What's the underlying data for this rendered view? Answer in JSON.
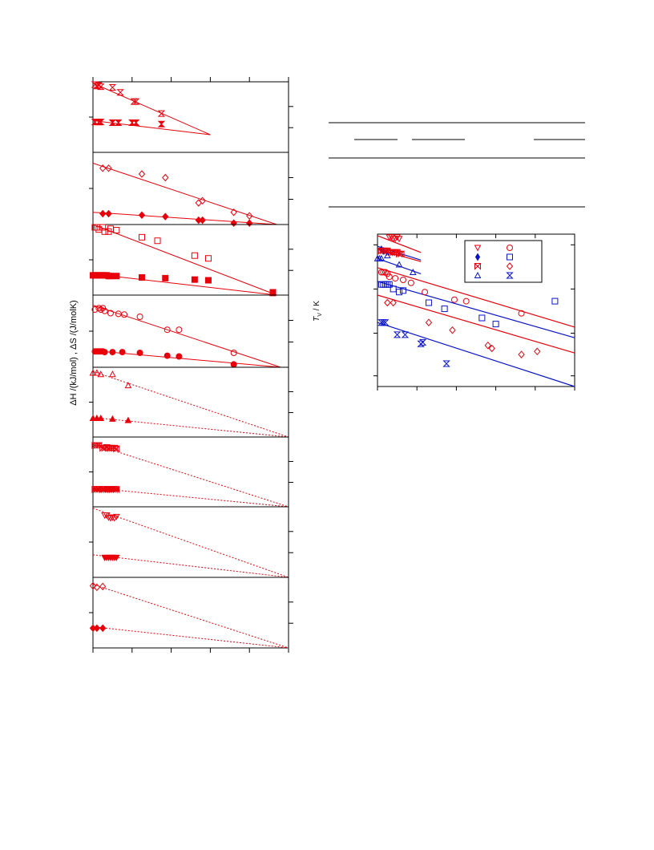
{
  "left_figure": {
    "ylabel": "ΔH /(kJ/mol) , ΔS /(J/molK)"
  },
  "right_figure": {
    "ylabel_main": "T",
    "ylabel_sub": "V",
    "ylabel_unit": " / K"
  },
  "colors": {
    "red": "#e8000b",
    "blue": "#0a14c8",
    "axis": "#000000"
  },
  "chart_data": [
    {
      "type": "scatter",
      "title": "",
      "xlabel": "",
      "ylabel": "ΔH /(kJ/mol) , ΔS /(J/molK)",
      "panel": 1,
      "fit_line": "solid",
      "symbol": "hourglass",
      "xlim": [
        0,
        1
      ],
      "ylim": [
        0,
        1
      ],
      "series": [
        {
          "marker": "open",
          "x": [
            0.01,
            0.02,
            0.03,
            0.04,
            0.1,
            0.14,
            0.21,
            0.22,
            0.35
          ],
          "y": [
            0.96,
            0.94,
            0.95,
            0.93,
            0.92,
            0.85,
            0.72,
            0.72,
            0.55
          ]
        },
        {
          "marker": "filled",
          "x": [
            0.01,
            0.03,
            0.04,
            0.1,
            0.13,
            0.2,
            0.22,
            0.35
          ],
          "y": [
            0.43,
            0.43,
            0.43,
            0.42,
            0.42,
            0.42,
            0.42,
            0.4
          ]
        }
      ],
      "fit": [
        {
          "x0": 0,
          "y0": 0.98,
          "x1": 0.6,
          "y1": 0.25
        },
        {
          "x0": 0,
          "y0": 0.45,
          "x1": 0.6,
          "y1": 0.25
        }
      ]
    },
    {
      "type": "scatter",
      "panel": 2,
      "fit_line": "solid",
      "symbol": "diamond",
      "xlim": [
        0,
        1
      ],
      "ylim": [
        0,
        1
      ],
      "series": [
        {
          "marker": "open",
          "x": [
            0.05,
            0.08,
            0.25,
            0.37,
            0.54,
            0.56,
            0.72,
            0.8
          ],
          "y": [
            0.78,
            0.78,
            0.7,
            0.65,
            0.3,
            0.33,
            0.17,
            0.12
          ]
        },
        {
          "marker": "filled",
          "x": [
            0.05,
            0.08,
            0.25,
            0.37,
            0.54,
            0.56,
            0.72,
            0.8
          ],
          "y": [
            0.15,
            0.15,
            0.13,
            0.11,
            0.06,
            0.06,
            0.02,
            0.02
          ]
        }
      ],
      "fit": [
        {
          "x0": 0,
          "y0": 0.85,
          "x1": 0.94,
          "y1": 0.0
        },
        {
          "x0": 0,
          "y0": 0.17,
          "x1": 0.94,
          "y1": 0.0
        }
      ]
    },
    {
      "type": "scatter",
      "panel": 3,
      "fit_line": "solid",
      "symbol": "square",
      "xlim": [
        0,
        1
      ],
      "ylim": [
        0,
        1
      ],
      "series": [
        {
          "marker": "open",
          "x": [
            0.01,
            0.02,
            0.03,
            0.05,
            0.06,
            0.08,
            0.09,
            0.12,
            0.25,
            0.33,
            0.52,
            0.59,
            0.92
          ],
          "y": [
            0.96,
            0.96,
            0.93,
            0.96,
            0.9,
            0.9,
            0.94,
            0.92,
            0.82,
            0.77,
            0.56,
            0.52,
            0.04
          ]
        },
        {
          "marker": "filled",
          "x": [
            0.0,
            0.01,
            0.02,
            0.03,
            0.04,
            0.05,
            0.06,
            0.07,
            0.08,
            0.09,
            0.12,
            0.25,
            0.37,
            0.52,
            0.59,
            0.92
          ],
          "y": [
            0.28,
            0.28,
            0.28,
            0.28,
            0.28,
            0.28,
            0.28,
            0.28,
            0.27,
            0.27,
            0.27,
            0.25,
            0.24,
            0.22,
            0.21,
            0.03
          ]
        }
      ],
      "fit": [
        {
          "x0": 0,
          "y0": 1.0,
          "x1": 0.94,
          "y1": 0.0
        },
        {
          "x0": 0,
          "y0": 0.3,
          "x1": 0.94,
          "y1": 0.0
        }
      ]
    },
    {
      "type": "scatter",
      "panel": 4,
      "fit_line": "solid",
      "symbol": "circle",
      "xlim": [
        0,
        1
      ],
      "ylim": [
        0,
        1
      ],
      "series": [
        {
          "marker": "open",
          "x": [
            0.01,
            0.03,
            0.04,
            0.05,
            0.06,
            0.09,
            0.13,
            0.16,
            0.24,
            0.38,
            0.44,
            0.72
          ],
          "y": [
            0.8,
            0.82,
            0.8,
            0.82,
            0.78,
            0.75,
            0.74,
            0.73,
            0.7,
            0.52,
            0.52,
            0.2
          ]
        },
        {
          "marker": "filled",
          "x": [
            0.01,
            0.02,
            0.03,
            0.04,
            0.05,
            0.06,
            0.1,
            0.15,
            0.24,
            0.38,
            0.44,
            0.72
          ],
          "y": [
            0.22,
            0.22,
            0.22,
            0.22,
            0.22,
            0.21,
            0.21,
            0.21,
            0.2,
            0.16,
            0.15,
            0.04
          ]
        }
      ],
      "fit": [
        {
          "x0": 0,
          "y0": 0.86,
          "x1": 0.96,
          "y1": 0.0
        },
        {
          "x0": 0,
          "y0": 0.23,
          "x1": 0.96,
          "y1": 0.0
        }
      ]
    },
    {
      "type": "scatter",
      "panel": 5,
      "fit_line": "dotted",
      "symbol": "triangle-up",
      "xlim": [
        0,
        1
      ],
      "ylim": [
        0,
        1
      ],
      "series": [
        {
          "marker": "open",
          "x": [
            0.0,
            0.02,
            0.04,
            0.1,
            0.18
          ],
          "y": [
            0.92,
            0.92,
            0.9,
            0.9,
            0.74
          ]
        },
        {
          "marker": "filled",
          "x": [
            0.0,
            0.02,
            0.04,
            0.1,
            0.18
          ],
          "y": [
            0.27,
            0.27,
            0.27,
            0.26,
            0.24
          ]
        }
      ],
      "fit": [
        {
          "x0": 0,
          "y0": 0.94,
          "x1": 1.0,
          "y1": 0.0
        },
        {
          "x0": 0,
          "y0": 0.28,
          "x1": 1.0,
          "y1": 0.0
        }
      ]
    },
    {
      "type": "scatter",
      "panel": 6,
      "fit_line": "dotted",
      "symbol": "bowtie",
      "xlim": [
        0,
        1
      ],
      "ylim": [
        0,
        1
      ],
      "series": [
        {
          "marker": "open",
          "x": [
            0.01,
            0.02,
            0.03,
            0.05,
            0.06,
            0.07,
            0.08,
            0.09,
            0.1,
            0.11,
            0.12
          ],
          "y": [
            0.88,
            0.88,
            0.88,
            0.84,
            0.84,
            0.85,
            0.84,
            0.84,
            0.84,
            0.84,
            0.83
          ]
        },
        {
          "marker": "filled",
          "x": [
            0.01,
            0.02,
            0.03,
            0.05,
            0.06,
            0.07,
            0.08,
            0.09,
            0.1,
            0.11,
            0.12
          ],
          "y": [
            0.25,
            0.25,
            0.25,
            0.25,
            0.25,
            0.25,
            0.25,
            0.25,
            0.25,
            0.25,
            0.25
          ]
        }
      ],
      "fit": [
        {
          "x0": 0,
          "y0": 0.9,
          "x1": 1.0,
          "y1": 0.0
        },
        {
          "x0": 0,
          "y0": 0.27,
          "x1": 1.0,
          "y1": 0.0
        }
      ]
    },
    {
      "type": "scatter",
      "panel": 7,
      "fit_line": "dotted",
      "symbol": "triangle-down",
      "xlim": [
        0,
        1
      ],
      "ylim": [
        0,
        1
      ],
      "series": [
        {
          "marker": "open",
          "x": [
            0.06,
            0.07,
            0.08,
            0.09,
            0.1,
            0.11,
            0.12
          ],
          "y": [
            0.88,
            0.88,
            0.85,
            0.84,
            0.85,
            0.84,
            0.86
          ]
        },
        {
          "marker": "filled",
          "x": [
            0.06,
            0.07,
            0.08,
            0.09,
            0.1,
            0.11,
            0.12
          ],
          "y": [
            0.28,
            0.28,
            0.28,
            0.28,
            0.28,
            0.28,
            0.28
          ]
        }
      ],
      "fit": [
        {
          "x0": 0,
          "y0": 0.98,
          "x1": 1.0,
          "y1": 0.0
        },
        {
          "x0": 0,
          "y0": 0.32,
          "x1": 1.0,
          "y1": 0.0
        }
      ]
    },
    {
      "type": "scatter",
      "panel": 8,
      "fit_line": "dotted",
      "symbol": "diamond",
      "xlim": [
        0,
        1
      ],
      "ylim": [
        0,
        1
      ],
      "series": [
        {
          "marker": "open",
          "x": [
            0.0,
            0.02,
            0.05
          ],
          "y": [
            0.88,
            0.86,
            0.87
          ]
        },
        {
          "marker": "filled",
          "x": [
            0.0,
            0.02,
            0.05
          ],
          "y": [
            0.28,
            0.28,
            0.28
          ]
        }
      ],
      "fit": [
        {
          "x0": 0,
          "y0": 0.9,
          "x1": 1.0,
          "y1": 0.0
        },
        {
          "x0": 0,
          "y0": 0.3,
          "x1": 1.0,
          "y1": 0.0
        }
      ]
    },
    {
      "type": "scatter",
      "title": "",
      "xlabel": "",
      "ylabel": "T_V / K",
      "xlim": [
        0,
        1
      ],
      "ylim": [
        0,
        1
      ],
      "legend": "top-right",
      "legend_entries": [
        {
          "symbol": "triangle-down",
          "color": "red"
        },
        {
          "symbol": "circle",
          "color": "red"
        },
        {
          "symbol": "diamond-filled",
          "color": "blue"
        },
        {
          "symbol": "square",
          "color": "blue"
        },
        {
          "symbol": "bowtie",
          "color": "red"
        },
        {
          "symbol": "diamond",
          "color": "red"
        },
        {
          "symbol": "triangle-up",
          "color": "blue"
        },
        {
          "symbol": "hourglass",
          "color": "blue"
        }
      ],
      "series": [
        {
          "symbol": "triangle-down",
          "color": "red",
          "x": [
            0.06,
            0.07,
            0.08,
            0.09,
            0.1,
            0.11
          ],
          "y": [
            0.98,
            0.98,
            0.97,
            0.97,
            0.98,
            0.97
          ]
        },
        {
          "symbol": "diamond-filled",
          "color": "blue",
          "x": [
            0.02,
            0.03
          ],
          "y": [
            0.9,
            0.89
          ]
        },
        {
          "symbol": "bowtie",
          "color": "red",
          "x": [
            0.02,
            0.03,
            0.04,
            0.05,
            0.06,
            0.07,
            0.08,
            0.09,
            0.1,
            0.11,
            0.12
          ],
          "y": [
            0.89,
            0.89,
            0.89,
            0.89,
            0.88,
            0.88,
            0.88,
            0.88,
            0.88,
            0.87,
            0.87
          ]
        },
        {
          "symbol": "triangle-up",
          "color": "blue",
          "x": [
            0.0,
            0.01,
            0.02,
            0.05,
            0.11,
            0.18
          ],
          "y": [
            0.84,
            0.84,
            0.84,
            0.86,
            0.8,
            0.75
          ]
        },
        {
          "symbol": "circle",
          "color": "red",
          "x": [
            0.02,
            0.03,
            0.04,
            0.05,
            0.06,
            0.09,
            0.13,
            0.17,
            0.24,
            0.39,
            0.45,
            0.73
          ],
          "y": [
            0.75,
            0.75,
            0.75,
            0.74,
            0.72,
            0.71,
            0.7,
            0.68,
            0.62,
            0.57,
            0.56,
            0.48
          ]
        },
        {
          "symbol": "square",
          "color": "blue",
          "x": [
            0.02,
            0.03,
            0.04,
            0.05,
            0.06,
            0.08,
            0.11,
            0.13,
            0.26,
            0.34,
            0.53,
            0.6,
            0.9
          ],
          "y": [
            0.67,
            0.67,
            0.67,
            0.67,
            0.67,
            0.64,
            0.62,
            0.63,
            0.55,
            0.51,
            0.45,
            0.41,
            0.56
          ]
        },
        {
          "symbol": "diamond",
          "color": "red",
          "x": [
            0.05,
            0.08,
            0.26,
            0.38,
            0.56,
            0.58,
            0.73,
            0.81
          ],
          "y": [
            0.55,
            0.55,
            0.42,
            0.37,
            0.27,
            0.25,
            0.21,
            0.23
          ]
        },
        {
          "symbol": "hourglass",
          "color": "blue",
          "x": [
            0.02,
            0.03,
            0.04,
            0.1,
            0.14,
            0.22,
            0.23,
            0.35
          ],
          "y": [
            0.42,
            0.42,
            0.42,
            0.34,
            0.34,
            0.28,
            0.29,
            0.15
          ]
        }
      ],
      "fit": [
        {
          "color": "red",
          "x0": 0.0,
          "y0": 0.99,
          "x1": 0.22,
          "y1": 0.88
        },
        {
          "color": "blue",
          "x0": 0.0,
          "y0": 0.92,
          "x1": 0.22,
          "y1": 0.83
        },
        {
          "color": "red",
          "x0": 0.0,
          "y0": 0.9,
          "x1": 0.22,
          "y1": 0.82
        },
        {
          "color": "blue",
          "x0": 0.0,
          "y0": 0.84,
          "x1": 0.22,
          "y1": 0.74
        },
        {
          "color": "red",
          "x0": 0.0,
          "y0": 0.78,
          "x1": 1.0,
          "y1": 0.39
        },
        {
          "color": "blue",
          "x0": 0.0,
          "y0": 0.69,
          "x1": 1.0,
          "y1": 0.32
        },
        {
          "color": "red",
          "x0": 0.0,
          "y0": 0.6,
          "x1": 1.0,
          "y1": 0.22
        },
        {
          "color": "blue",
          "x0": 0.0,
          "y0": 0.42,
          "x1": 1.0,
          "y1": 0.0
        }
      ]
    }
  ]
}
